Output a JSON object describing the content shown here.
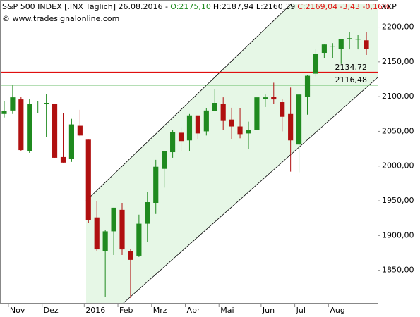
{
  "chart_data": {
    "type": "candlestick",
    "title": "S&P 500 INDEX [.INX  Täglich] 26.08.2016 -",
    "open_label": "O:2175,10",
    "high_low_label": "H:2187,94 L:2160,39",
    "close_label": "C:2169,04 -3,43 -0,16%",
    "source": "© www.tradesignalonline.com",
    "axis_label": "XXP",
    "categories": [
      null,
      "Nov",
      null,
      null,
      null,
      "Dez",
      null,
      null,
      null,
      null,
      "2016",
      null,
      null,
      null,
      "Feb",
      null,
      null,
      null,
      "Mrz",
      null,
      null,
      null,
      "Apr",
      null,
      null,
      null,
      "Mai",
      null,
      null,
      null,
      null,
      "Jun",
      null,
      null,
      null,
      "Jul",
      null,
      null,
      null,
      "Aug",
      null,
      null,
      null,
      null
    ],
    "series": [
      {
        "up_color": "#1f8a1f",
        "down_color": "#b01010",
        "open": [
          2075,
          2080,
          2096,
          2022,
          2089,
          2090,
          2090,
          2013,
          2010,
          2058,
          2038,
          1926,
          1878,
          1906,
          1937,
          1878,
          1871,
          1917,
          1947,
          1996,
          2020,
          2048,
          2037,
          2073,
          2050,
          2079,
          2090,
          2067,
          2057,
          2047,
          2052,
          2097,
          2100,
          2092,
          2075,
          2031,
          2100,
          2133,
          2163,
          2173,
          2169,
          2183,
          2183,
          2181
        ],
        "high": [
          2094,
          2116,
          2100,
          2097,
          2094,
          2104,
          2090,
          2076,
          2068,
          2081,
          2038,
          1950,
          1908,
          1940,
          1947,
          1881,
          1930,
          1963,
          2009,
          2022,
          2052,
          2056,
          2075,
          2073,
          2083,
          2111,
          2099,
          2084,
          2083,
          2064,
          2096,
          2103,
          2120,
          2097,
          2113,
          2103,
          2131,
          2169,
          2175,
          2177,
          2182,
          2193,
          2189,
          2193
        ],
        "low": [
          2070,
          2075,
          2022,
          2019,
          2076,
          2042,
          2012,
          2005,
          2006,
          2043,
          1918,
          1878,
          1812,
          1872,
          1872,
          1810,
          1869,
          1891,
          1931,
          1969,
          2012,
          2022,
          2022,
          2039,
          2044,
          2079,
          2052,
          2039,
          2040,
          2025,
          2052,
          2085,
          2089,
          2050,
          1992,
          1991,
          2074,
          2129,
          2155,
          2155,
          2147,
          2168,
          2168,
          2160
        ],
        "close": [
          2079,
          2099,
          2023,
          2089,
          2090,
          2091,
          2012,
          2005,
          2060,
          2044,
          1922,
          1880,
          1906,
          1940,
          1880,
          1865,
          1917,
          1948,
          1999,
          2022,
          2049,
          2036,
          2073,
          2047,
          2080,
          2091,
          2065,
          2057,
          2046,
          2052,
          2099,
          2099,
          2096,
          2071,
          2037,
          2103,
          2130,
          2162,
          2175,
          2173,
          2183,
          2184,
          2183,
          2169
        ]
      }
    ],
    "levels": [
      {
        "value": 2134.72,
        "label": "2134,72",
        "color": "#e01010"
      },
      {
        "value": 2116.48,
        "label": "2116,48",
        "color": "#3aa83a"
      }
    ],
    "ylim": [
      1803,
      2234
    ],
    "yticks": [
      {
        "value": 1850,
        "label": "1850,00"
      },
      {
        "value": 1900,
        "label": "1900,00"
      },
      {
        "value": 1950,
        "label": "1950,00"
      },
      {
        "value": 2000,
        "label": "2000,00"
      },
      {
        "value": 2050,
        "label": "2050,00"
      },
      {
        "value": 2100,
        "label": "2100,00"
      },
      {
        "value": 2150,
        "label": "2150,00"
      },
      {
        "value": 2200,
        "label": "2200,00"
      }
    ]
  }
}
